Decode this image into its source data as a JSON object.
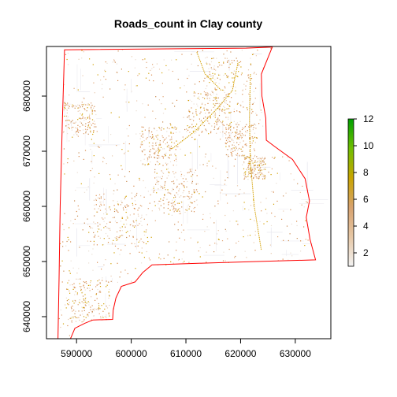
{
  "chart_data": {
    "type": "raster-map",
    "title": "Roads_count in Clay county",
    "xlabel": "",
    "ylabel": "",
    "xlim": [
      584500,
      636500
    ],
    "ylim": [
      636000,
      689000
    ],
    "x_ticks": [
      590000,
      600000,
      610000,
      620000,
      630000
    ],
    "y_ticks": [
      640000,
      650000,
      660000,
      670000,
      680000
    ],
    "x_tick_labels": [
      "590000",
      "600000",
      "610000",
      "620000",
      "630000"
    ],
    "y_tick_labels": [
      "640000",
      "650000",
      "660000",
      "670000",
      "680000"
    ],
    "legend": {
      "position": "right",
      "range": [
        1,
        12
      ],
      "ticks": [
        2,
        4,
        6,
        8,
        10,
        12
      ],
      "tick_labels": [
        "2",
        "4",
        "6",
        "8",
        "10",
        "12"
      ],
      "colors": [
        "#f2f2f2",
        "#e6c7a5",
        "#d7a26e",
        "#c9a400",
        "#6fbe00",
        "#00a000"
      ]
    },
    "boundary": [
      [
        587800,
        688400
      ],
      [
        621000,
        688700
      ],
      [
        625800,
        688900
      ],
      [
        623800,
        684000
      ],
      [
        623900,
        680000
      ],
      [
        624600,
        676000
      ],
      [
        624700,
        672000
      ],
      [
        626300,
        670800
      ],
      [
        629500,
        668500
      ],
      [
        631800,
        665000
      ],
      [
        632600,
        661000
      ],
      [
        632000,
        658000
      ],
      [
        632700,
        654000
      ],
      [
        633700,
        650300
      ],
      [
        623000,
        650000
      ],
      [
        613000,
        649700
      ],
      [
        603800,
        649400
      ],
      [
        602100,
        648000
      ],
      [
        600700,
        646300
      ],
      [
        598200,
        645500
      ],
      [
        597200,
        643400
      ],
      [
        596700,
        641200
      ],
      [
        596600,
        639500
      ],
      [
        593000,
        639400
      ],
      [
        591500,
        638800
      ],
      [
        589700,
        637900
      ],
      [
        588900,
        636000
      ],
      [
        586600,
        636000
      ],
      [
        586800,
        647000
      ],
      [
        587000,
        660000
      ],
      [
        587400,
        675000
      ],
      [
        587800,
        688400
      ]
    ],
    "boundary_color": "#ff0000",
    "road_color": "#d98b4c"
  }
}
